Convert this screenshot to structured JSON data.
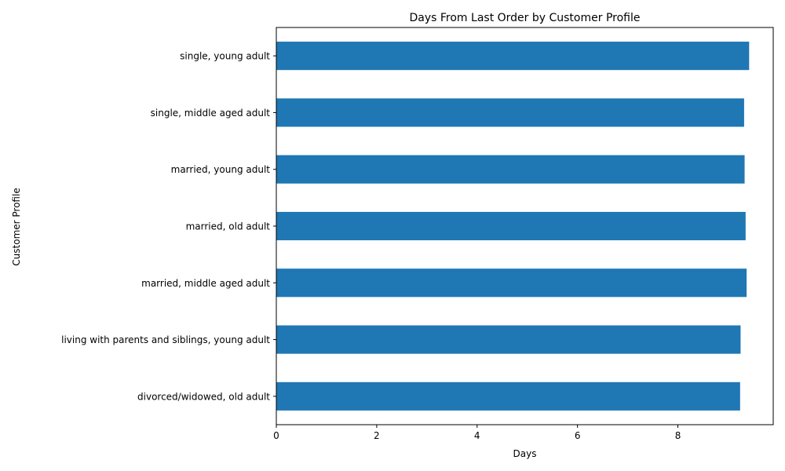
{
  "chart_data": {
    "type": "bar",
    "orientation": "horizontal",
    "title": "Days From Last Order by Customer Profile",
    "xlabel": "Days",
    "ylabel": "Customer Profile",
    "xlim": [
      0,
      9.9
    ],
    "xticks": [
      0,
      2,
      4,
      6,
      8
    ],
    "grid": false,
    "bar_color": "#1f77b4",
    "categories": [
      "divorced/widowed, old adult",
      "living with parents and siblings, young adult",
      "married, middle aged adult",
      "married, old adult",
      "married, young adult",
      "single, middle aged adult",
      "single, young adult"
    ],
    "values": [
      9.24,
      9.25,
      9.37,
      9.35,
      9.33,
      9.32,
      9.42
    ]
  }
}
